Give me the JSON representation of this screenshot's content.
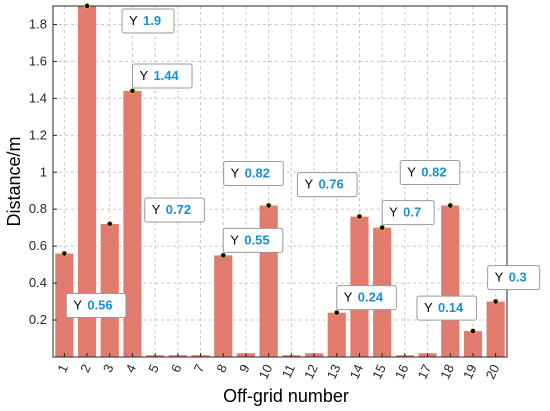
{
  "chart_data": {
    "type": "bar",
    "xlabel": "Off-grid number",
    "ylabel": "Distance/m",
    "categories": [
      "1",
      "2",
      "3",
      "4",
      "5",
      "6",
      "7",
      "8",
      "9",
      "10",
      "11",
      "12",
      "13",
      "14",
      "15",
      "16",
      "17",
      "18",
      "19",
      "20"
    ],
    "values": [
      0.56,
      1.9,
      0.72,
      1.44,
      0.01,
      0.01,
      0.01,
      0.55,
      0.02,
      0.82,
      0.01,
      0.02,
      0.24,
      0.76,
      0.7,
      0.01,
      0.02,
      0.82,
      0.14,
      0.3
    ],
    "ylim": [
      0,
      1.9
    ],
    "yticks": [
      "0.2",
      "0.4",
      "0.6",
      "0.8",
      "1",
      "1.2",
      "1.4",
      "1.6",
      "1.8"
    ],
    "grid": "on",
    "bar_color": "#e07b6e",
    "datatips": [
      {
        "x": 1,
        "y_label": "Y",
        "value": "0.56"
      },
      {
        "x": 2,
        "y_label": "Y",
        "value": "1.9"
      },
      {
        "x": 3,
        "y_label": "Y",
        "value": "0.72"
      },
      {
        "x": 4,
        "y_label": "Y",
        "value": "1.44"
      },
      {
        "x": 8,
        "y_label": "Y",
        "value": "0.55"
      },
      {
        "x": 10,
        "y_label": "Y",
        "value": "0.82"
      },
      {
        "x": 13,
        "y_label": "Y",
        "value": "0.24"
      },
      {
        "x": 14,
        "y_label": "Y",
        "value": "0.76"
      },
      {
        "x": 15,
        "y_label": "Y",
        "value": "0.7"
      },
      {
        "x": 18,
        "y_label": "Y",
        "value": "0.82"
      },
      {
        "x": 19,
        "y_label": "Y",
        "value": "0.14"
      },
      {
        "x": 20,
        "y_label": "Y",
        "value": "0.3"
      }
    ]
  }
}
